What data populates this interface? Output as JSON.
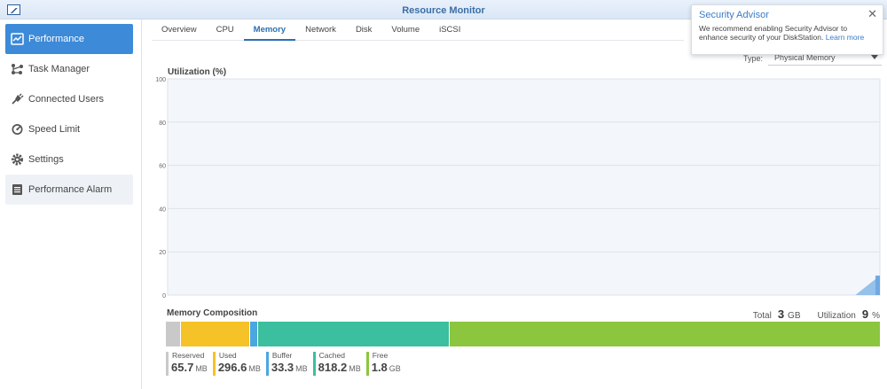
{
  "window": {
    "title": "Resource Monitor"
  },
  "sidebar": {
    "items": [
      {
        "label": "Performance",
        "icon": "performance-icon",
        "active": true
      },
      {
        "label": "Task Manager",
        "icon": "task-manager-icon"
      },
      {
        "label": "Connected Users",
        "icon": "plug-icon"
      },
      {
        "label": "Speed Limit",
        "icon": "speedometer-icon"
      },
      {
        "label": "Settings",
        "icon": "gear-icon"
      },
      {
        "label": "Performance Alarm",
        "icon": "alarm-list-icon"
      }
    ]
  },
  "tabs": [
    "Overview",
    "CPU",
    "Memory",
    "Network",
    "Disk",
    "Volume",
    "iSCSI"
  ],
  "active_tab": "Memory",
  "type_filter": {
    "label": "Type:",
    "value": "Physical Memory"
  },
  "chart_data": {
    "type": "area",
    "title": "Utilization (%)",
    "xlabel": "",
    "ylabel": "",
    "ylim": [
      0,
      100
    ],
    "yticks": [
      0,
      20,
      40,
      60,
      80,
      100
    ],
    "grid": true,
    "series": [
      {
        "values": [
          0,
          0,
          0,
          0,
          0,
          0,
          0,
          0,
          0,
          0,
          0,
          0,
          0,
          0,
          0,
          0,
          0,
          0,
          0,
          0,
          0,
          0,
          0,
          0,
          0,
          0,
          0,
          0,
          0,
          9
        ]
      }
    ],
    "color": "#8bbbe8"
  },
  "composition": {
    "title": "Memory Composition",
    "total_label": "Total",
    "total_value": "3",
    "total_unit": "GB",
    "util_label": "Utilization",
    "util_value": "9",
    "util_unit": "%",
    "segments": [
      {
        "label": "Reserved",
        "value": "65.7",
        "unit": "MB",
        "mb": 65.7,
        "color": "#c9c9c9"
      },
      {
        "label": "Used",
        "value": "296.6",
        "unit": "MB",
        "mb": 296.6,
        "color": "#f5c227"
      },
      {
        "label": "Buffer",
        "value": "33.3",
        "unit": "MB",
        "mb": 33.3,
        "color": "#4aa7e0"
      },
      {
        "label": "Cached",
        "value": "818.2",
        "unit": "MB",
        "mb": 818.2,
        "color": "#3bbf9e"
      },
      {
        "label": "Free",
        "value": "1.8",
        "unit": "GB",
        "mb": 1843.2,
        "color": "#8cc63e"
      }
    ]
  },
  "advisor": {
    "title": "Security Advisor",
    "message": "We recommend enabling Security Advisor to enhance security of your DiskStation.",
    "link": "Learn more"
  }
}
